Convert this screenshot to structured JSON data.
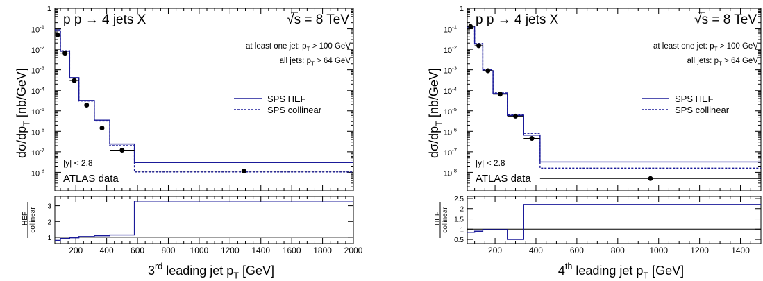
{
  "chart_data": [
    {
      "type": "step",
      "process": "p p → 4 jets X",
      "energy": "√s = 8 TeV",
      "cut_one": "at least one jet: p_T > 100 GeV",
      "cut_all": "all jets: p_T > 64 GeV",
      "rapidity": "|y| < 2.8",
      "data_label": "ATLAS data",
      "ylabel": "dσ/dp_T    [nb/GeV]",
      "xlabel": "3rd leading jet p_T    [GeV]",
      "ratio_label_top": "HEF",
      "ratio_label_bottom": "collinear",
      "x_range": [
        64,
        2000
      ],
      "y_range_log": [
        -8.9,
        0
      ],
      "ratio_range": [
        0.6,
        3.6
      ],
      "x_ticks": [
        200,
        400,
        600,
        800,
        1000,
        1200,
        1400,
        1600,
        1800,
        2000
      ],
      "y_ticks": [
        1,
        0.1,
        0.01,
        0.001,
        0.0001,
        1e-05,
        1e-06,
        1e-07,
        1e-08
      ],
      "ratio_ticks": [
        1,
        2,
        3
      ],
      "bin_edges": [
        64,
        100,
        160,
        220,
        320,
        420,
        580,
        2000
      ],
      "legend": [
        "SPS HEF",
        "SPS collinear"
      ],
      "series": [
        {
          "name": "SPS HEF",
          "values": [
            0.08,
            0.008,
            0.00042,
            3.2e-05,
            3.5e-06,
            2.4e-07,
            3e-08
          ]
        },
        {
          "name": "SPS collinear",
          "values": [
            0.09,
            0.0085,
            0.0004,
            3e-05,
            3.2e-06,
            2e-07,
            1.05e-08
          ]
        }
      ],
      "data_points": {
        "x": [
          82,
          130,
          190,
          270,
          370,
          500,
          1290
        ],
        "y": [
          0.05,
          0.0065,
          0.0003,
          1.9e-05,
          1.45e-06,
          1.2e-07,
          1.15e-08
        ]
      },
      "ratio": [
        0.8,
        0.92,
        0.97,
        1.05,
        1.1,
        1.15,
        3.3
      ]
    },
    {
      "type": "step",
      "process": "p p → 4 jets X",
      "energy": "√s = 8 TeV",
      "cut_one": "at least one jet: p_T > 100 GeV",
      "cut_all": "all jets: p_T > 64 GeV",
      "rapidity": "|y| < 2.8",
      "data_label": "ATLAS data",
      "ylabel": "dσ/dp_T    [nb/GeV]",
      "xlabel": "4th leading jet p_T    [GeV]",
      "ratio_label_top": "HEF",
      "ratio_label_bottom": "collinear",
      "x_range": [
        64,
        1500
      ],
      "y_range_log": [
        -8.9,
        0
      ],
      "ratio_range": [
        0.3,
        2.6
      ],
      "x_ticks": [
        200,
        400,
        600,
        800,
        1000,
        1200,
        1400
      ],
      "y_ticks": [
        1,
        0.1,
        0.01,
        0.001,
        0.0001,
        1e-05,
        1e-06,
        1e-07,
        1e-08
      ],
      "ratio_ticks": [
        0.5,
        1,
        1.5,
        2,
        2.5
      ],
      "bin_edges": [
        64,
        100,
        140,
        190,
        260,
        340,
        420,
        1500
      ],
      "legend": [
        "SPS HEF",
        "SPS collinear"
      ],
      "series": [
        {
          "name": "SPS HEF",
          "values": [
            0.11,
            0.018,
            0.0009,
            7e-05,
            6e-06,
            6.5e-07,
            3.2e-08
          ]
        },
        {
          "name": "SPS collinear",
          "values": [
            0.125,
            0.019,
            0.001,
            7.5e-05,
            6.5e-06,
            8e-07,
            1.6e-08
          ]
        }
      ],
      "data_points": {
        "x": [
          80,
          120,
          165,
          225,
          300,
          380,
          960
        ],
        "y": [
          0.13,
          0.015,
          0.0009,
          6.5e-05,
          5.5e-06,
          4.5e-07,
          5e-09
        ]
      },
      "ratio": [
        0.85,
        0.9,
        0.98,
        0.98,
        0.5,
        2.2,
        2.2
      ]
    }
  ]
}
